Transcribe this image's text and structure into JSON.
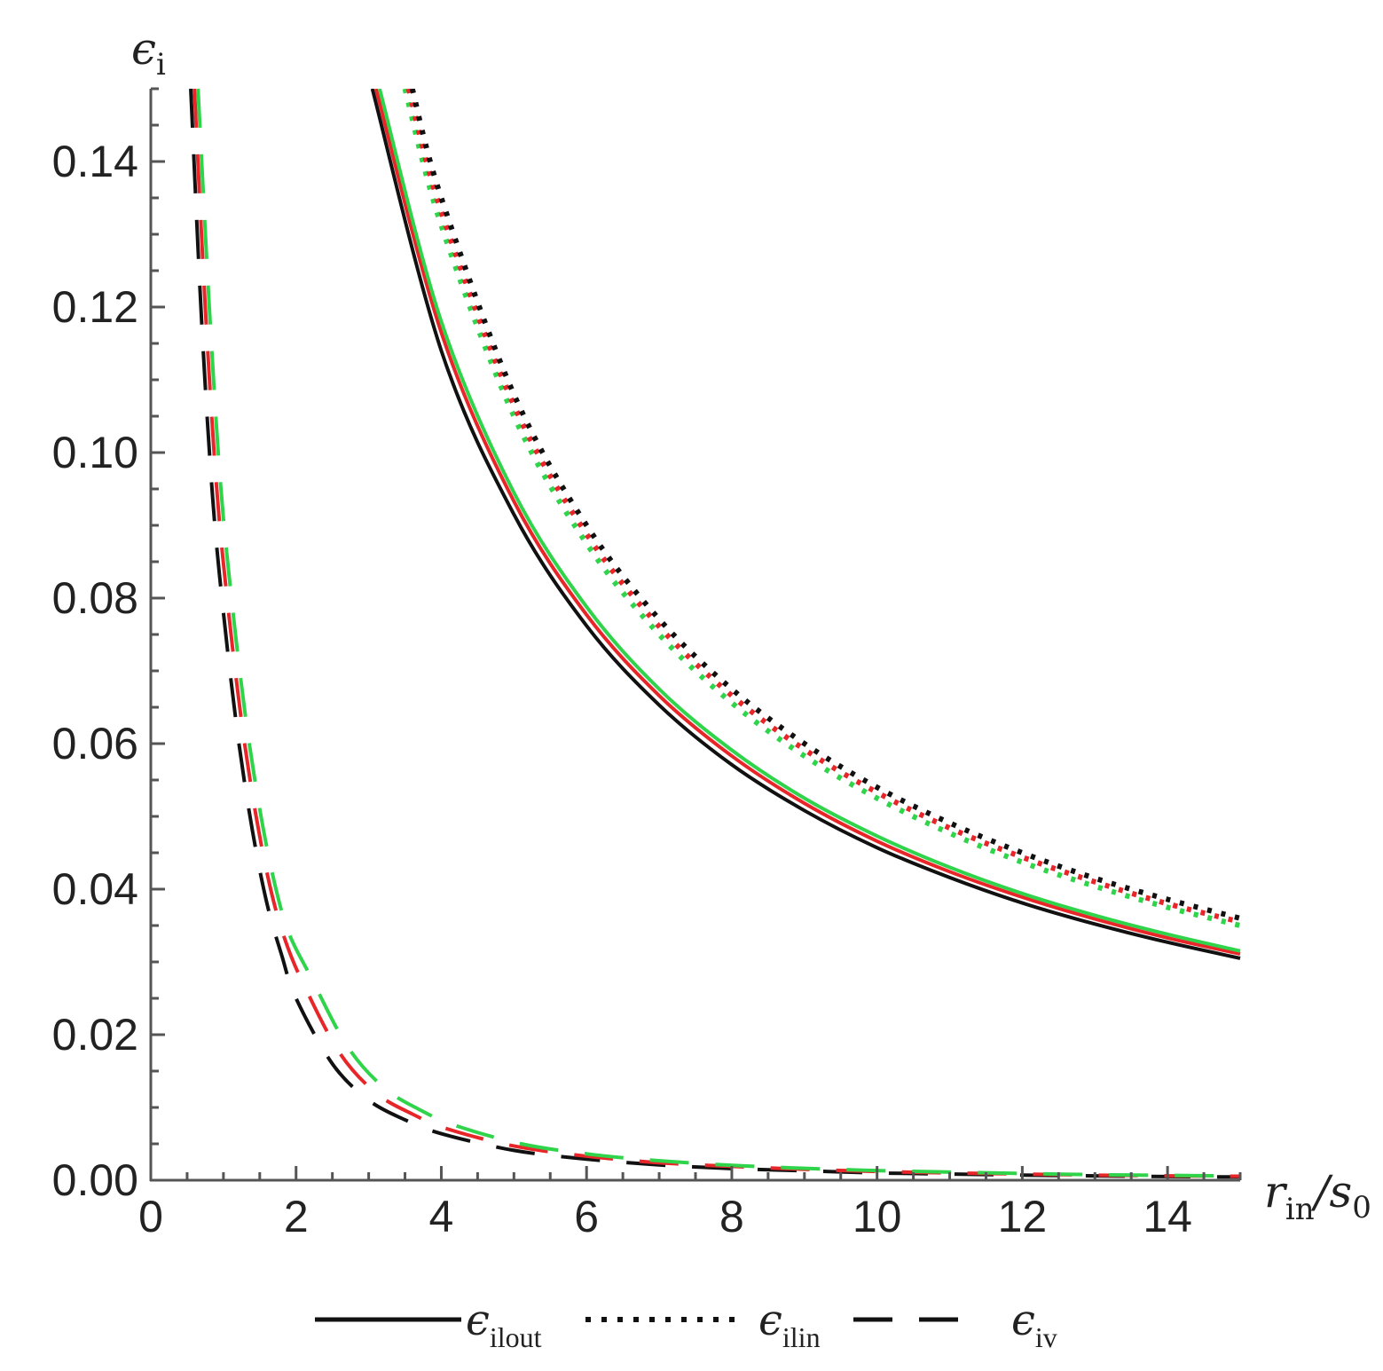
{
  "chart_data": {
    "type": "line",
    "xlabel": {
      "sym1": "r",
      "sub1": "in",
      "sep": "/",
      "sym2": "s",
      "sub2": "0"
    },
    "ylabel": {
      "sym": "ϵ",
      "sub": "i"
    },
    "xlim": [
      0,
      15
    ],
    "ylim": [
      0,
      0.15
    ],
    "x_ticks": [
      0,
      2,
      4,
      6,
      8,
      10,
      12,
      14
    ],
    "x_tick_labels": [
      "0",
      "2",
      "4",
      "6",
      "8",
      "10",
      "12",
      "14"
    ],
    "y_ticks": [
      0,
      0.02,
      0.04,
      0.06,
      0.08,
      0.1,
      0.12,
      0.14
    ],
    "y_tick_labels": [
      "0.00",
      "0.02",
      "0.04",
      "0.06",
      "0.08",
      "0.10",
      "0.12",
      "0.14"
    ],
    "grid": false,
    "legend": {
      "placement": "bottom",
      "entries": [
        {
          "style": "solid",
          "sym": "ϵ",
          "sub": "ilout"
        },
        {
          "style": "dotted",
          "sym": "ϵ",
          "sub": "ilin"
        },
        {
          "style": "dashed",
          "sym": "ϵ",
          "sub": "iv"
        }
      ]
    },
    "colors": {
      "black": "#111111",
      "red": "#e8262a",
      "green": "#2fd44a"
    },
    "series": [
      {
        "style": "solid",
        "color": "black",
        "x": [
          3.05,
          4,
          5,
          6,
          7,
          8,
          9,
          10,
          11,
          12,
          13,
          14,
          15
        ],
        "y": [
          0.15,
          0.114,
          0.0915,
          0.0762,
          0.0653,
          0.0571,
          0.0508,
          0.0457,
          0.0416,
          0.0381,
          0.0352,
          0.0327,
          0.0305
        ]
      },
      {
        "style": "solid",
        "color": "red",
        "x": [
          3.1,
          4,
          5,
          6,
          7,
          8,
          9,
          10,
          11,
          12,
          13,
          14,
          15
        ],
        "y": [
          0.15,
          0.1165,
          0.0933,
          0.0777,
          0.0666,
          0.0583,
          0.0518,
          0.0466,
          0.0424,
          0.0389,
          0.0359,
          0.0333,
          0.0311
        ]
      },
      {
        "style": "solid",
        "color": "green",
        "x": [
          3.15,
          4,
          5,
          6,
          7,
          8,
          9,
          10,
          11,
          12,
          13,
          14,
          15
        ],
        "y": [
          0.15,
          0.118,
          0.0945,
          0.0788,
          0.0675,
          0.0591,
          0.0525,
          0.0473,
          0.043,
          0.0394,
          0.0364,
          0.0338,
          0.0315
        ]
      },
      {
        "style": "dotted",
        "color": "green",
        "x": [
          3.5,
          4,
          5,
          6,
          7,
          8,
          9,
          10,
          11,
          12,
          13,
          14,
          15
        ],
        "y": [
          0.15,
          0.1312,
          0.105,
          0.0875,
          0.075,
          0.0656,
          0.0583,
          0.0525,
          0.0477,
          0.0437,
          0.0404,
          0.0375,
          0.035
        ]
      },
      {
        "style": "dotted",
        "color": "red",
        "x": [
          3.55,
          4,
          5,
          6,
          7,
          8,
          9,
          10,
          11,
          12,
          13,
          14,
          15
        ],
        "y": [
          0.15,
          0.1331,
          0.1065,
          0.0888,
          0.0761,
          0.0666,
          0.0592,
          0.0533,
          0.0484,
          0.0444,
          0.041,
          0.038,
          0.0355
        ]
      },
      {
        "style": "dotted",
        "color": "black",
        "x": [
          3.6,
          4,
          5,
          6,
          7,
          8,
          9,
          10,
          11,
          12,
          13,
          14,
          15
        ],
        "y": [
          0.15,
          0.135,
          0.108,
          0.09,
          0.0771,
          0.0675,
          0.06,
          0.054,
          0.0491,
          0.045,
          0.0415,
          0.0386,
          0.036
        ]
      },
      {
        "style": "dashed",
        "color": "black",
        "x": [
          0.55,
          0.7,
          0.85,
          1.0,
          1.2,
          1.4,
          1.6,
          1.8,
          2,
          2.5,
          3,
          3.5,
          4,
          5,
          6,
          7,
          8,
          9,
          10,
          11,
          12,
          13,
          14,
          15
        ],
        "y": [
          0.15,
          0.118,
          0.094,
          0.078,
          0.061,
          0.048,
          0.038,
          0.031,
          0.025,
          0.016,
          0.011,
          0.0083,
          0.0064,
          0.0041,
          0.0029,
          0.0021,
          0.0016,
          0.0013,
          0.001,
          0.00085,
          0.0007,
          0.0006,
          0.0005,
          0.00045
        ]
      },
      {
        "style": "dashed",
        "color": "red",
        "x": [
          0.6,
          0.75,
          0.9,
          1.05,
          1.25,
          1.45,
          1.65,
          1.85,
          2.1,
          2.6,
          3.1,
          3.6,
          4.1,
          5,
          6,
          7,
          8,
          9,
          10,
          11,
          12,
          13,
          14,
          15
        ],
        "y": [
          0.15,
          0.12,
          0.096,
          0.08,
          0.063,
          0.05,
          0.04,
          0.033,
          0.027,
          0.0175,
          0.012,
          0.0091,
          0.007,
          0.0047,
          0.0033,
          0.0024,
          0.0019,
          0.0015,
          0.0012,
          0.001,
          0.00085,
          0.0007,
          0.0006,
          0.00055
        ]
      },
      {
        "style": "dashed",
        "color": "green",
        "x": [
          0.65,
          0.8,
          0.95,
          1.1,
          1.3,
          1.5,
          1.7,
          1.9,
          2.2,
          2.7,
          3.2,
          3.7,
          4.2,
          5.1,
          6.1,
          7.1,
          8.1,
          9.1,
          10.1,
          11.1,
          12.1,
          13.1,
          14.1,
          15
        ],
        "y": [
          0.15,
          0.121,
          0.097,
          0.081,
          0.064,
          0.051,
          0.041,
          0.034,
          0.028,
          0.0185,
          0.0128,
          0.0097,
          0.0075,
          0.005,
          0.0035,
          0.0026,
          0.002,
          0.0016,
          0.0013,
          0.0011,
          0.0009,
          0.00075,
          0.00065,
          0.0006
        ]
      }
    ]
  }
}
